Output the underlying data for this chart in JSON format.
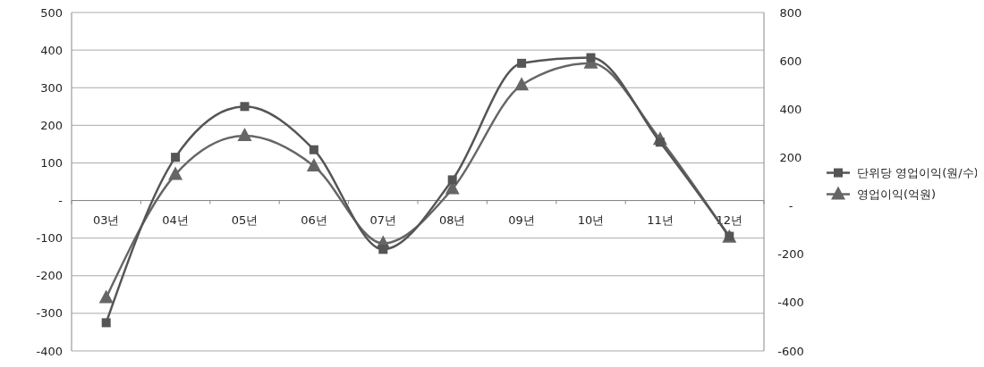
{
  "chart_data": {
    "type": "line",
    "categories": [
      "03년",
      "04년",
      "05년",
      "06년",
      "07년",
      "08년",
      "09년",
      "10년",
      "11년",
      "12년"
    ],
    "series": [
      {
        "name": "단위당 영업이익(원/수)",
        "color": "#555555",
        "marker": "square",
        "values": [
          -325,
          115,
          250,
          135,
          -130,
          55,
          365,
          380,
          155,
          -95
        ]
      },
      {
        "name": "영업이익(억원)",
        "color": "#666666",
        "marker": "triangle",
        "axis": "y2",
        "values": [
          -380,
          130,
          290,
          165,
          -155,
          70,
          500,
          590,
          275,
          -130
        ]
      }
    ],
    "ylim": [
      -400,
      500
    ],
    "yticks": [
      -400,
      -300,
      -200,
      -100,
      {
        "value": 0,
        "label": "-"
      },
      100,
      200,
      300,
      400,
      500
    ],
    "y2lim": [
      -600,
      800
    ],
    "y2ticks": [
      -600,
      -400,
      -200,
      {
        "value": 0,
        "label": "-"
      },
      200,
      400,
      600,
      800
    ],
    "grid": "y",
    "legend": "right"
  }
}
